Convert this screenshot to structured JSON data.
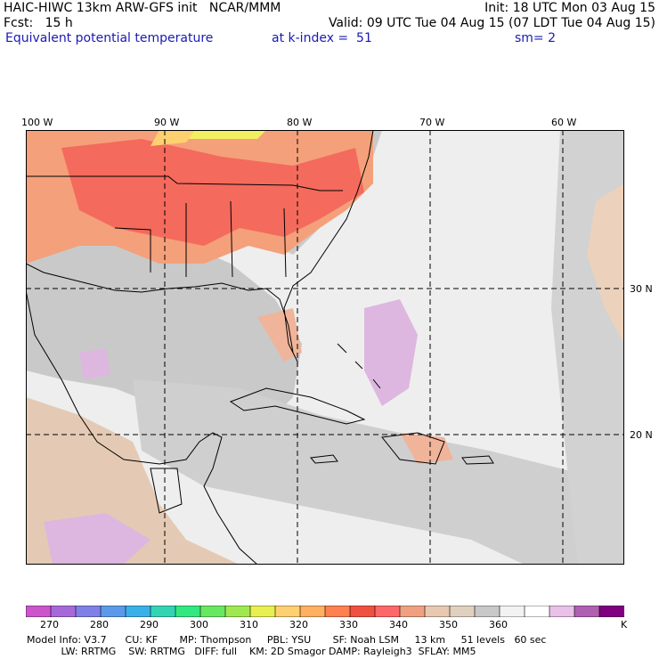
{
  "header": {
    "title": "HAIC-HIWC 13km ARW-GFS init   NCAR/MMM",
    "forecast": "Fcst:   15 h",
    "variable": "Equivalent potential temperature",
    "init": "Init: 18 UTC Mon 03 Aug 15",
    "valid": "Valid: 09 UTC Tue 04 Aug 15 (07 LDT Tue 04 Aug 15)",
    "level": "at k-index =  51",
    "smoothing": "sm= 2"
  },
  "map": {
    "lon_labels": [
      "100 W",
      "90 W",
      "80 W",
      "70 W",
      "60 W"
    ],
    "lat_labels": [
      "30 N",
      "20 N"
    ]
  },
  "colorbar": {
    "colors": [
      "#cc55cc",
      "#a66ad8",
      "#8080e8",
      "#5a9ae8",
      "#3ab0e8",
      "#33d4b4",
      "#33e880",
      "#66e860",
      "#a0e850",
      "#e8f050",
      "#ffd070",
      "#ffb060",
      "#ff8050",
      "#f05040",
      "#ff6868",
      "#f0a080",
      "#e8c8b0",
      "#e0d0c0",
      "#c8c8c8",
      "#f2f2f2",
      "#ffffff",
      "#e8c0e8",
      "#b060b0",
      "#800080"
    ],
    "tick_labels": [
      "270",
      "280",
      "290",
      "300",
      "310",
      "320",
      "330",
      "340",
      "350",
      "360"
    ],
    "unit": "K"
  },
  "footer": {
    "line1": "Model Info: V3.7      CU: KF       MP: Thompson     PBL: YSU       SF: Noah LSM     13 km     51 levels   60 sec",
    "line2": "           LW: RRTMG    SW: RRTMG   DIFF: full    KM: 2D Smagor DAMP: Rayleigh3  SFLAY: MM5"
  }
}
